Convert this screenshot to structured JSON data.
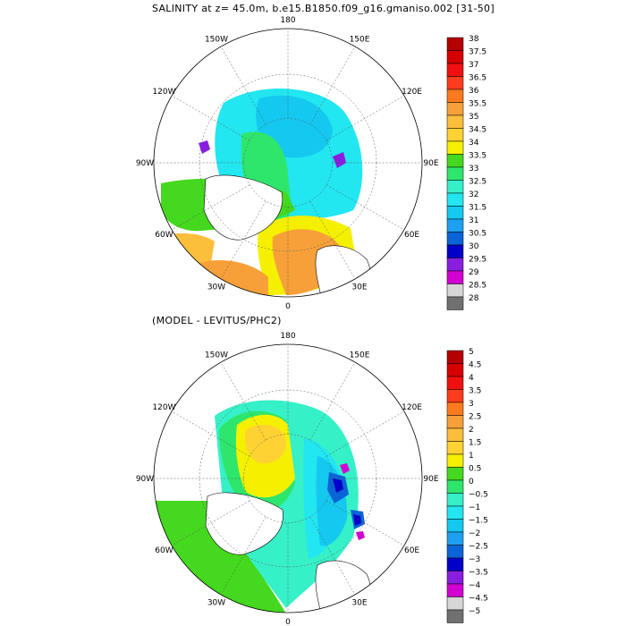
{
  "chart_data": [
    {
      "type": "heatmap",
      "title": "SALINITY at z=  45.0m, b.e15.B1850.f09_g16.gmaniso.002 [31-50]",
      "projection": "north polar stereographic",
      "grid": true,
      "legend_position": "right",
      "lon_labels": [
        "180",
        "150E",
        "120E",
        "90E",
        "60E",
        "30E",
        "0",
        "30W",
        "60W",
        "90W",
        "120W",
        "150W"
      ],
      "colorbar": {
        "levels": [
          "38",
          "37.5",
          "37",
          "36.5",
          "36",
          "35.5",
          "35",
          "34.5",
          "34",
          "33.5",
          "33",
          "32.5",
          "32",
          "31.5",
          "31",
          "30.5",
          "30",
          "29.5",
          "29",
          "28.5",
          "28"
        ],
        "colors": [
          "#b40000",
          "#d60000",
          "#f01010",
          "#ff3c1e",
          "#ff7a1e",
          "#f7a03a",
          "#fbbf3c",
          "#ffd233",
          "#f5f000",
          "#44d81e",
          "#2ee66c",
          "#36f0c8",
          "#22e6f0",
          "#14c8f0",
          "#1ea0f0",
          "#0a64d8",
          "#0000c8",
          "#8a1ee0",
          "#d200d2",
          "#d6d6d6",
          "#707070"
        ]
      }
    },
    {
      "type": "heatmap",
      "title": "(MODEL - LEVITUS/PHC2)",
      "projection": "north polar stereographic",
      "grid": true,
      "legend_position": "right",
      "lon_labels": [
        "180",
        "150E",
        "120E",
        "90E",
        "60E",
        "30E",
        "0",
        "30W",
        "60W",
        "90W",
        "120W",
        "150W"
      ],
      "colorbar": {
        "levels": [
          "5",
          "4.5",
          "4",
          "3.5",
          "3",
          "2.5",
          "2",
          "1.5",
          "1",
          "0.5",
          "0",
          "−0.5",
          "−1",
          "−1.5",
          "−2",
          "−2.5",
          "−3",
          "−3.5",
          "−4",
          "−4.5",
          "−5"
        ],
        "colors": [
          "#b40000",
          "#d60000",
          "#f01010",
          "#ff3c1e",
          "#ff7a1e",
          "#f7a03a",
          "#fbbf3c",
          "#ffd233",
          "#f5f000",
          "#44d81e",
          "#2ee66c",
          "#36f0c8",
          "#22e6f0",
          "#14c8f0",
          "#1ea0f0",
          "#0a64d8",
          "#0000c8",
          "#8a1ee0",
          "#d200d2",
          "#d6d6d6",
          "#707070"
        ]
      }
    }
  ]
}
